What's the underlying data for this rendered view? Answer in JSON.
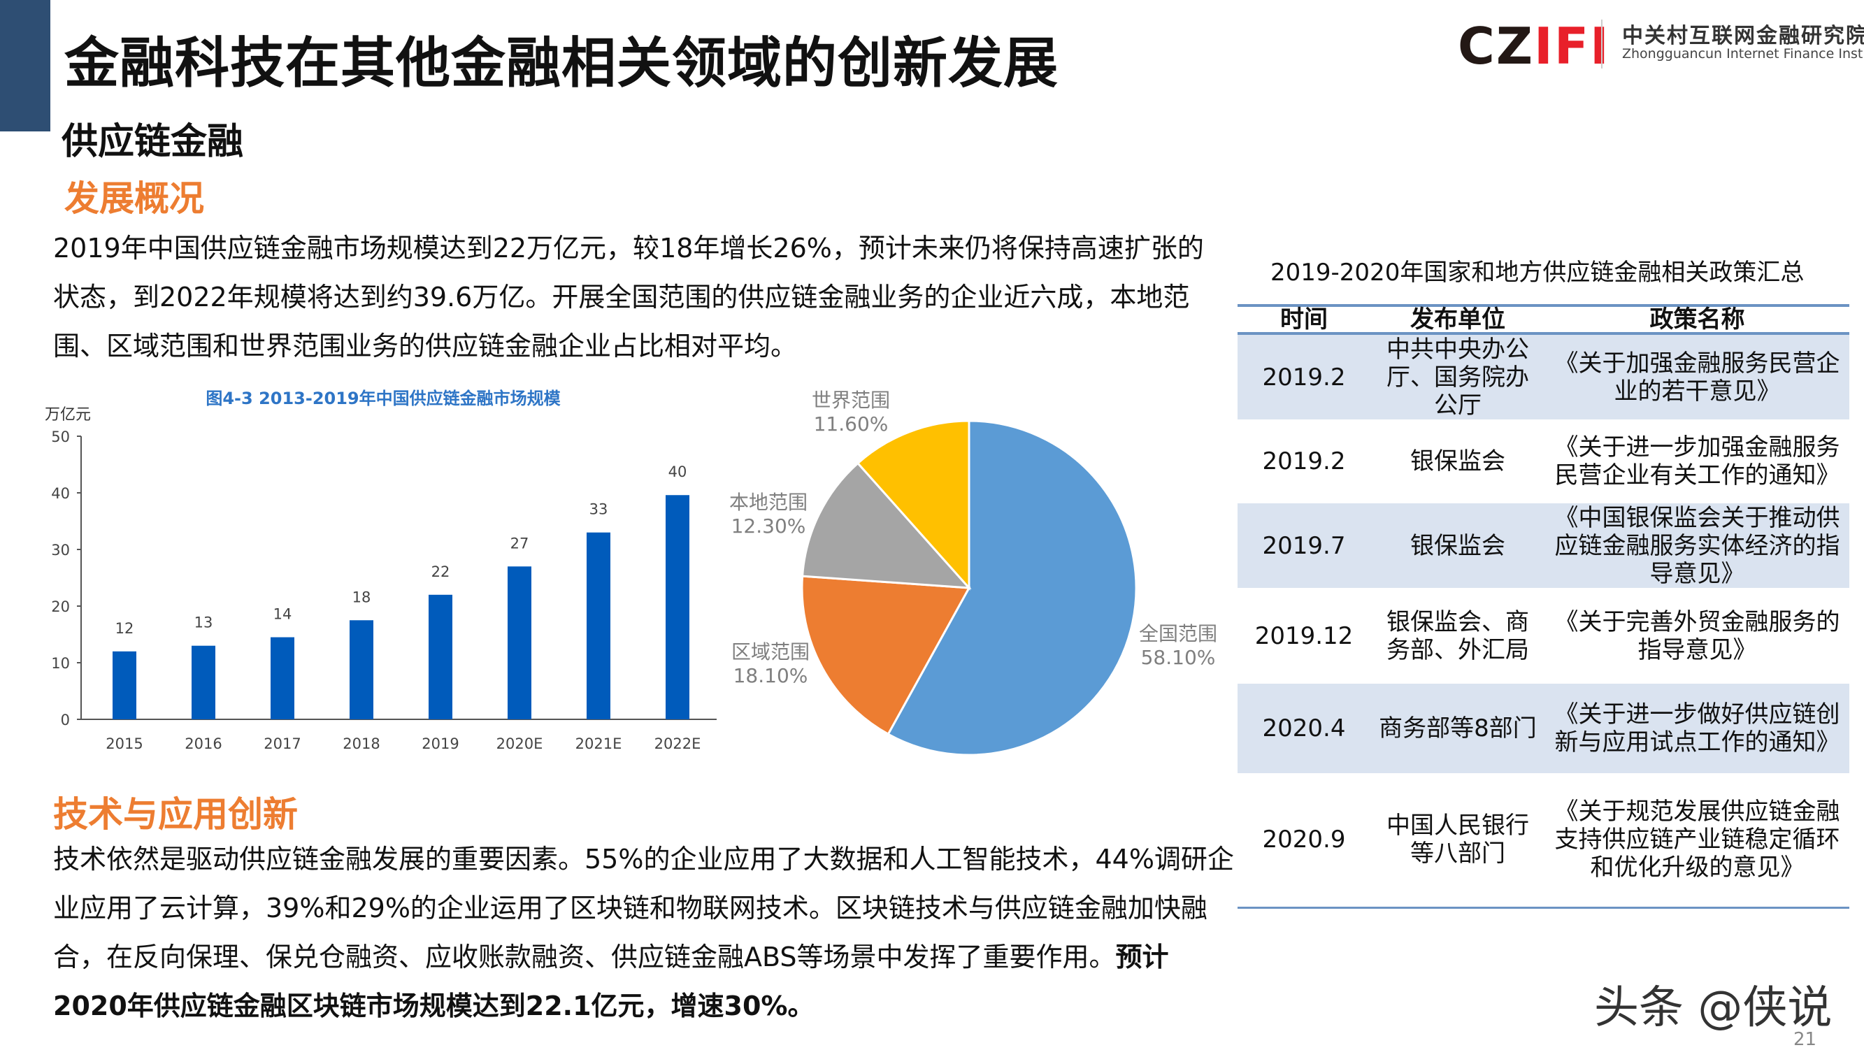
{
  "header": {
    "title": "金融科技在其他金融相关领域的创新发展",
    "subtitle": "供应链金融",
    "accent_bar_color": "#2e4e73"
  },
  "logo": {
    "mark_c": "CZ",
    "mark_r": "IFI",
    "cn": "中关村互联网金融研究院",
    "en": "Zhongguancun Internet Finance Institute"
  },
  "section1": {
    "heading": "发展概况",
    "text": "2019年中国供应链金融市场规模达到22万亿元，较18年增长26%，预计未来仍将保持高速扩张的状态，到2022年规模将达到约39.6万亿。开展全国范围的供应链金融业务的企业近六成，本地范围、区域范围和世界范围业务的供应链金融企业占比相对平均。"
  },
  "section2": {
    "heading": "技术与应用创新",
    "text": "技术依然是驱动供应链金融发展的重要因素。55%的企业应用了大数据和人工智能技术，44%调研企业应用了云计算，39%和29%的企业运用了区块链和物联网技术。区块链技术与供应链金融加快融合，在反向保理、保兑仓融资、应收账款融资、供应链金融ABS等场景中发挥了重要作用。",
    "bold_text": "预计2020年供应链金融区块链市场规模达到22.1亿元，增速30%。"
  },
  "chart_data": [
    {
      "type": "bar",
      "title": "图4-3 2013-2019年中国供应链金融市场规模",
      "ylabel": "万亿元",
      "xlabel": "",
      "categories": [
        "2015",
        "2016",
        "2017",
        "2018",
        "2019",
        "2020E",
        "2021E",
        "2022E"
      ],
      "values": [
        12,
        13,
        14.5,
        17.5,
        22,
        27,
        33,
        39.6
      ],
      "data_labels": [
        "12",
        "13",
        "14",
        "18",
        "22",
        "27",
        "33",
        "40"
      ],
      "ylim": [
        0,
        50
      ],
      "yticks": [
        "0",
        "10",
        "20",
        "30",
        "40",
        "50"
      ],
      "grid": false,
      "color": "#005bbb"
    },
    {
      "type": "pie",
      "slices": [
        {
          "name": "全国范围",
          "value": 58.1,
          "label": "58.10%",
          "color": "#5b9bd5"
        },
        {
          "name": "区域范围",
          "value": 18.1,
          "label": "18.10%",
          "color": "#ed7d31"
        },
        {
          "name": "本地范围",
          "value": 12.3,
          "label": "12.30%",
          "color": "#a5a5a5"
        },
        {
          "name": "世界范围",
          "value": 11.6,
          "label": "11.60%",
          "color": "#ffc000"
        }
      ]
    }
  ],
  "table": {
    "title": "2019-2020年国家和地方供应链金融相关政策汇总",
    "headers": [
      "时间",
      "发布单位",
      "政策名称"
    ],
    "rows": [
      [
        "2019.2",
        "中共中央办公厅、国务院办公厅",
        "《关于加强金融服务民营企业的若干意见》"
      ],
      [
        "2019.2",
        "银保监会",
        "《关于进一步加强金融服务民营企业有关工作的通知》"
      ],
      [
        "2019.7",
        "银保监会",
        "《中国银保监会关于推动供应链金融服务实体经济的指导意见》"
      ],
      [
        "2019.12",
        "银保监会、商务部、外汇局",
        "《关于完善外贸金融服务的指导意见》"
      ],
      [
        "2020.4",
        "商务部等8部门",
        "《关于进一步做好供应链创新与应用试点工作的通知》"
      ],
      [
        "2020.9",
        "中国人民银行等八部门",
        "《关于规范发展供应链金融 支持供应链产业链稳定循环和优化升级的意见》"
      ]
    ]
  },
  "footer": {
    "watermark": "头条 @侠说",
    "page_number": "21"
  }
}
